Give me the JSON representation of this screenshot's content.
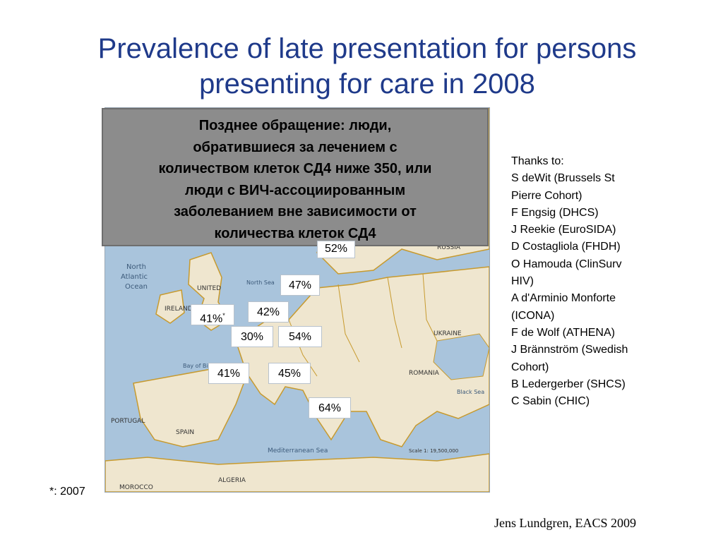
{
  "slide": {
    "title_line1": "Prevalence of late presentation for persons",
    "title_line2": "presenting for care in 2008",
    "callout_lines": [
      "Позднее обращение: люди,",
      "обратившиеся за лечением с",
      "количеством клеток СД4 ниже 350, или",
      "люди с ВИЧ-ассоциированным",
      "заболеванием вне зависимости от",
      "количества клеток СД4"
    ],
    "map_labels": {
      "north_atlantic": [
        "North",
        "Atlantic",
        "Ocean"
      ],
      "russia": "RUSSIA",
      "ukraine": "UKRAINE",
      "romania": "ROMANIA",
      "spain": "SPAIN",
      "portugal": "PORTUGAL",
      "algeria": "ALGERIA",
      "morocco": "MOROCCO",
      "mediterranean": "Mediterranean Sea",
      "north_sea": "North Sea",
      "bay_of_biscay": "Bay of Biscay",
      "ireland": "IRELAND",
      "united": "UNITED",
      "black_sea": "Black Sea",
      "scale": "Scale 1: 19,500,000"
    },
    "percentages": [
      {
        "value": "52%",
        "footnote": ""
      },
      {
        "value": "47%",
        "footnote": ""
      },
      {
        "value": "42%",
        "footnote": ""
      },
      {
        "value": "41%",
        "footnote": "*"
      },
      {
        "value": "30%",
        "footnote": ""
      },
      {
        "value": "54%",
        "footnote": ""
      },
      {
        "value": "41%",
        "footnote": ""
      },
      {
        "value": "45%",
        "footnote": ""
      },
      {
        "value": "64%",
        "footnote": ""
      }
    ],
    "thanks": [
      "Thanks to:",
      "S deWit (Brussels St",
      "Pierre Cohort)",
      "F Engsig (DHCS)",
      "J Reekie (EuroSIDA)",
      "D Costagliola (FHDH)",
      "O Hamouda (ClinSurv",
      "HIV)",
      "A d'Arminio Monforte",
      "(ICONA)",
      "F de Wolf (ATHENA)",
      "J Brännström (Swedish",
      "Cohort)",
      "B Ledergerber (SHCS)",
      "C Sabin (CHIC)"
    ],
    "footnote": "*: 2007",
    "credit": "Jens Lundgren, EACS 2009"
  },
  "colors": {
    "title": "#1f3a8a",
    "sea": "#a9c4dc",
    "land": "#efe6cf",
    "border": "#c79a2e",
    "callout_bg": "#8c8c8c"
  }
}
